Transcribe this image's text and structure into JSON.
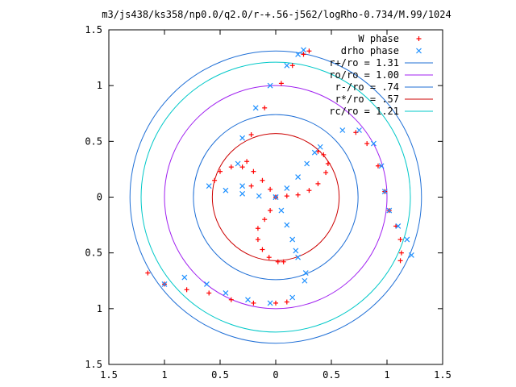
{
  "chart_data": {
    "type": "scatter",
    "title": "m3/js438/ks358/np0.0/q2.0/r-+.56-j562/logRho-0.734/M.99/1024",
    "xlabel": "",
    "ylabel": "",
    "xlim": [
      -1.5,
      1.5
    ],
    "ylim": [
      -1.5,
      1.5
    ],
    "x_ticks": [
      -1.5,
      -1,
      -0.5,
      0,
      0.5,
      1,
      1.5
    ],
    "y_ticks": [
      -1.5,
      -1,
      -0.5,
      0,
      0.5,
      1,
      1.5
    ],
    "x_tick_labels": [
      "1.5",
      "1",
      "0.5",
      "0",
      "0.5",
      "1",
      "1.5"
    ],
    "y_tick_labels": [
      "1.5",
      "1",
      "0.5",
      "0",
      "0.5",
      "1",
      "1.5"
    ],
    "grid": false,
    "legend_position": "top-right",
    "series": [
      {
        "name": "W phase",
        "marker": "plus",
        "color": "#ff0000",
        "points": [
          [
            -0.55,
            0.15
          ],
          [
            -0.5,
            0.23
          ],
          [
            -0.4,
            0.27
          ],
          [
            -0.3,
            0.27
          ],
          [
            -0.2,
            0.23
          ],
          [
            -0.12,
            0.15
          ],
          [
            -0.05,
            0.07
          ],
          [
            0,
            0
          ],
          [
            0,
            0
          ],
          [
            0.1,
            0.01
          ],
          [
            0.2,
            0.02
          ],
          [
            0.3,
            0.06
          ],
          [
            0.38,
            0.12
          ],
          [
            0.45,
            0.22
          ],
          [
            0.47,
            0.3
          ],
          [
            0.43,
            0.38
          ],
          [
            0.38,
            0.41
          ],
          [
            0,
            0
          ],
          [
            -0.05,
            -0.12
          ],
          [
            -0.1,
            -0.2
          ],
          [
            -0.16,
            -0.28
          ],
          [
            -0.16,
            -0.38
          ],
          [
            -0.12,
            -0.47
          ],
          [
            -0.06,
            -0.54
          ],
          [
            0.02,
            -0.58
          ],
          [
            0.07,
            -0.58
          ],
          [
            -0.22,
            0.1
          ],
          [
            -0.26,
            0.32
          ],
          [
            -0.22,
            0.56
          ],
          [
            -0.1,
            0.8
          ],
          [
            0.05,
            1.02
          ],
          [
            0.15,
            1.18
          ],
          [
            0.25,
            1.28
          ],
          [
            0.3,
            1.31
          ],
          [
            0.72,
            0.58
          ],
          [
            0.82,
            0.48
          ],
          [
            0.92,
            0.28
          ],
          [
            0.98,
            0.05
          ],
          [
            1.02,
            -0.12
          ],
          [
            1.08,
            -0.26
          ],
          [
            1.12,
            -0.38
          ],
          [
            1.13,
            -0.5
          ],
          [
            1.12,
            -0.57
          ],
          [
            -1.15,
            -0.68
          ],
          [
            -1.0,
            -0.78
          ],
          [
            -0.8,
            -0.83
          ],
          [
            -0.6,
            -0.86
          ],
          [
            -0.4,
            -0.92
          ],
          [
            -0.2,
            -0.95
          ],
          [
            0.0,
            -0.95
          ],
          [
            0.1,
            -0.94
          ]
        ]
      },
      {
        "name": "drho phase",
        "marker": "cross",
        "color": "#1e90ff",
        "points": [
          [
            -0.6,
            0.1
          ],
          [
            -0.45,
            0.06
          ],
          [
            -0.3,
            0.03
          ],
          [
            -0.15,
            0.01
          ],
          [
            0,
            0
          ],
          [
            0,
            0
          ],
          [
            0.1,
            0.08
          ],
          [
            0.2,
            0.18
          ],
          [
            0.28,
            0.3
          ],
          [
            0.35,
            0.4
          ],
          [
            0.4,
            0.45
          ],
          [
            0,
            0
          ],
          [
            0.05,
            -0.12
          ],
          [
            0.1,
            -0.25
          ],
          [
            0.15,
            -0.38
          ],
          [
            0.18,
            -0.48
          ],
          [
            0.2,
            -0.54
          ],
          [
            -0.3,
            0.1
          ],
          [
            -0.34,
            0.3
          ],
          [
            -0.3,
            0.53
          ],
          [
            -0.18,
            0.8
          ],
          [
            -0.05,
            1.0
          ],
          [
            0.1,
            1.18
          ],
          [
            0.2,
            1.28
          ],
          [
            0.25,
            1.32
          ],
          [
            0.6,
            0.6
          ],
          [
            0.75,
            0.6
          ],
          [
            0.88,
            0.48
          ],
          [
            0.95,
            0.28
          ],
          [
            0.98,
            0.05
          ],
          [
            1.02,
            -0.12
          ],
          [
            1.1,
            -0.26
          ],
          [
            1.18,
            -0.38
          ],
          [
            1.22,
            -0.52
          ],
          [
            -1.0,
            -0.78
          ],
          [
            -0.82,
            -0.72
          ],
          [
            -0.62,
            -0.78
          ],
          [
            -0.45,
            -0.86
          ],
          [
            -0.25,
            -0.92
          ],
          [
            -0.05,
            -0.95
          ],
          [
            0.15,
            -0.9
          ],
          [
            0.26,
            -0.75
          ],
          [
            0.27,
            -0.68
          ]
        ]
      }
    ],
    "circles": [
      {
        "name": "r+/ro = 1.31",
        "radius": 1.31,
        "color": "#1f6fd6"
      },
      {
        "name": "ro/ro = 1.00",
        "radius": 1.0,
        "color": "#a020f0"
      },
      {
        "name": "r-/ro = .74",
        "radius": 0.74,
        "color": "#1f6fd6"
      },
      {
        "name": "r*/ro = .57",
        "radius": 0.57,
        "color": "#cc0000"
      },
      {
        "name": "rc/ro = 1.21",
        "radius": 1.21,
        "color": "#00c8c8"
      }
    ]
  }
}
